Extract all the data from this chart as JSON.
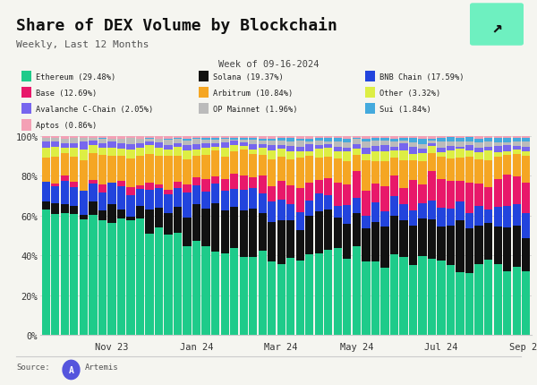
{
  "title": "Share of DEX Volume by Blockchain",
  "subtitle": "Weekly, Last 12 Months",
  "week_label": "Week of 09-16-2024",
  "bg_color": "#f5f5f0",
  "text_color": "#111111",
  "chains": [
    "Ethereum",
    "Solana",
    "BNB Chain",
    "Base",
    "Arbitrum",
    "Other",
    "Avalanche C-Chain",
    "OP Mainnet",
    "Sui",
    "Aptos"
  ],
  "legend_entries": [
    [
      "Ethereum (29.48%)",
      "#1ecb8a"
    ],
    [
      "Solana (19.37%)",
      "#111111"
    ],
    [
      "BNB Chain (17.59%)",
      "#2244dd"
    ],
    [
      "Base (12.69%)",
      "#e8186a"
    ],
    [
      "Arbitrum (10.84%)",
      "#f5a623"
    ],
    [
      "Other (3.32%)",
      "#ddee44"
    ],
    [
      "Avalanche C-Chain (2.05%)",
      "#7766ee"
    ],
    [
      "OP Mainnet (1.96%)",
      "#bbbbbb"
    ],
    [
      "Sui (1.84%)",
      "#44aadd"
    ],
    [
      "Aptos (0.86%)",
      "#f4a0b5"
    ]
  ],
  "tick_positions": [
    7,
    16,
    25,
    33,
    42,
    51
  ],
  "tick_labels": [
    "Nov 23",
    "Jan 24",
    "Mar 24",
    "May 24",
    "Jul 24",
    "Sep 24"
  ],
  "n_weeks": 52
}
